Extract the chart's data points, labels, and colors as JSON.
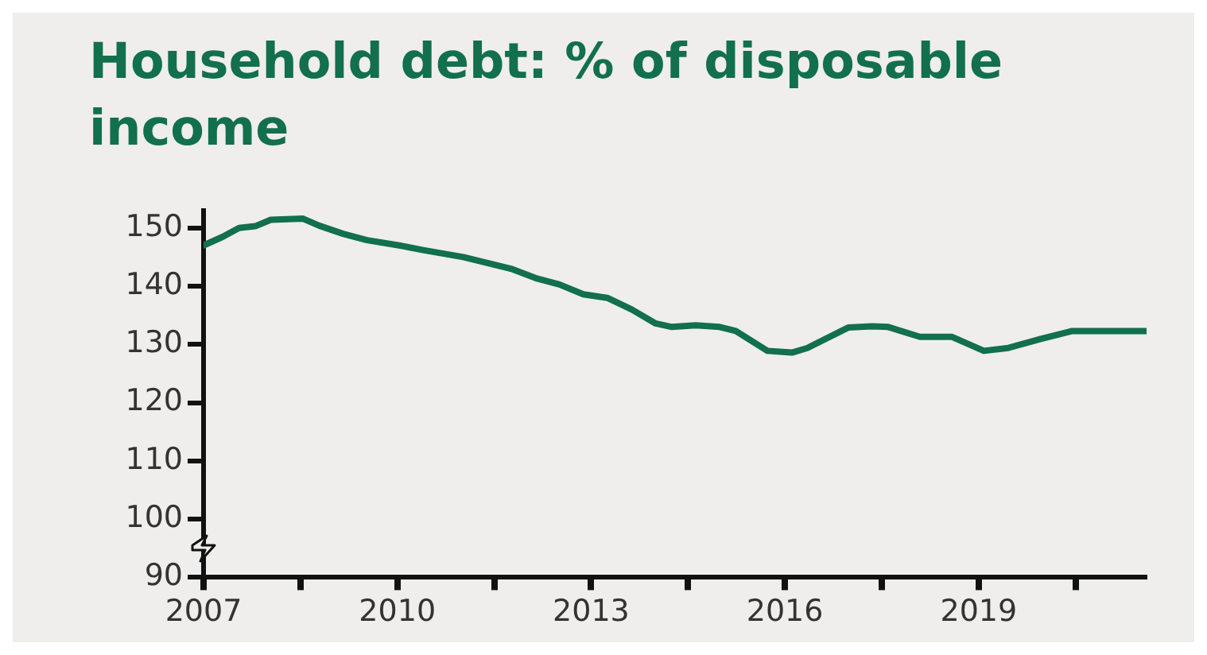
{
  "chart_data": {
    "type": "line",
    "title": "Household debt: % of disposable income",
    "x": [
      2007.0,
      2007.3,
      2007.55,
      2007.8,
      2008.04,
      2008.54,
      2008.79,
      2009.16,
      2009.53,
      2010.03,
      2010.4,
      2011.02,
      2011.76,
      2012.14,
      2012.51,
      2012.88,
      2013.25,
      2013.63,
      2014.0,
      2014.25,
      2014.62,
      2014.99,
      2015.24,
      2015.73,
      2016.11,
      2016.35,
      2016.98,
      2017.35,
      2017.6,
      2018.09,
      2018.59,
      2019.08,
      2019.46,
      2019.95,
      2020.45,
      2020.82,
      2021.59
    ],
    "series": [
      {
        "color": "#12704c",
        "values": [
          147,
          148.5,
          150,
          150.3,
          151.4,
          151.6,
          150.4,
          149,
          147.9,
          147,
          146.2,
          145,
          143,
          141.4,
          140.3,
          138.6,
          138,
          136,
          133.6,
          133,
          133.3,
          133,
          132.3,
          128.9,
          128.6,
          129.4,
          132.9,
          133.1,
          133,
          131.3,
          131.3,
          128.9,
          129.4,
          130.9,
          132.3,
          132.3,
          132.3
        ]
      }
    ],
    "xlim": [
      2007,
      2021.6
    ],
    "xticks": [
      2007,
      {
        "value": 2008.5,
        "label": null
      },
      2010,
      {
        "value": 2011.5,
        "label": null
      },
      2013,
      {
        "value": 2014.5,
        "label": null
      },
      2016,
      {
        "value": 2017.5,
        "label": null
      },
      2019,
      {
        "value": 2020.5,
        "label": null
      }
    ],
    "ylim": [
      90,
      153
    ],
    "yticks": [
      90,
      100,
      110,
      120,
      130,
      140,
      150
    ],
    "grid": false,
    "legend": false,
    "marker": "none",
    "line_style": "solid"
  }
}
